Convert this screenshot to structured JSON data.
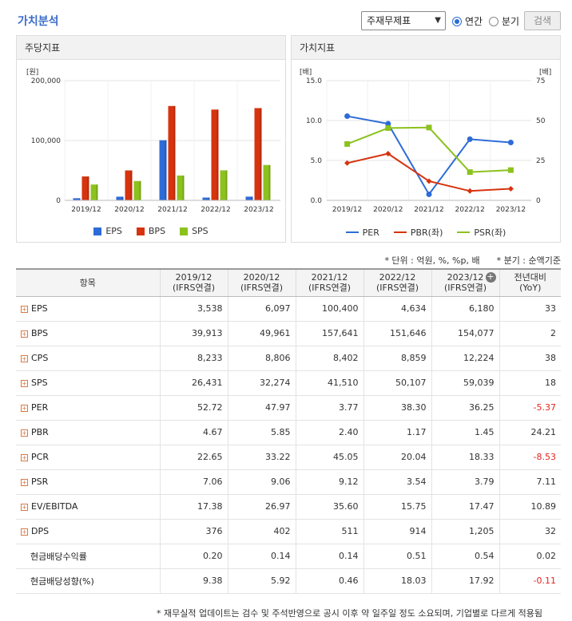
{
  "header": {
    "title": "가치분석",
    "select_value": "주재무제표",
    "radio_annual": "연간",
    "radio_quarter": "분기",
    "search_button": "검색"
  },
  "left_panel": {
    "title": "주당지표",
    "unit": "[원]",
    "chart_data": {
      "type": "bar",
      "categories": [
        "2019/12",
        "2020/12",
        "2021/12",
        "2022/12",
        "2023/12"
      ],
      "series": [
        {
          "name": "EPS",
          "color": "#2e6bd8",
          "values": [
            3538,
            6097,
            100400,
            4634,
            6180
          ]
        },
        {
          "name": "BPS",
          "color": "#d6330f",
          "values": [
            39913,
            49961,
            157641,
            151646,
            154077
          ]
        },
        {
          "name": "SPS",
          "color": "#8cc21e",
          "values": [
            26431,
            32274,
            41510,
            50107,
            59039
          ]
        }
      ],
      "ylim": [
        0,
        200000
      ],
      "yticks": [
        "0",
        "100,000",
        "200,000"
      ],
      "ytick_values": [
        0,
        100000,
        200000
      ]
    }
  },
  "right_panel": {
    "title": "가치지표",
    "unit_left": "[배]",
    "unit_right": "[배]",
    "chart_data": {
      "type": "line",
      "categories": [
        "2019/12",
        "2020/12",
        "2021/12",
        "2022/12",
        "2023/12"
      ],
      "series": [
        {
          "name": "PER",
          "color": "#2e6bd8",
          "axis": "right",
          "values": [
            52.72,
            47.97,
            3.77,
            38.3,
            36.25
          ]
        },
        {
          "name": "PBR(좌)",
          "color": "#d6330f",
          "axis": "left",
          "values": [
            4.67,
            5.85,
            2.4,
            1.17,
            1.45
          ]
        },
        {
          "name": "PSR(좌)",
          "color": "#8cc21e",
          "axis": "left",
          "values": [
            7.06,
            9.06,
            9.12,
            3.54,
            3.79
          ]
        }
      ],
      "ylim_left": [
        0,
        15
      ],
      "ylim_right": [
        0,
        75
      ],
      "yticks_left": [
        "0.0",
        "5.0",
        "10.0",
        "15.0"
      ],
      "yticks_right": [
        "0",
        "25",
        "50",
        "75"
      ]
    }
  },
  "unit_note": "* 단위 : 억원, %, %p, 배      * 분기 : 순액기준",
  "table": {
    "headers": [
      [
        "항목",
        ""
      ],
      [
        "2019/12",
        "(IFRS연결)"
      ],
      [
        "2020/12",
        "(IFRS연결)"
      ],
      [
        "2021/12",
        "(IFRS연결)"
      ],
      [
        "2022/12",
        "(IFRS연결)"
      ],
      [
        "2023/12",
        "(IFRS연결)"
      ],
      [
        "전년대비",
        "(YoY)"
      ]
    ],
    "rows": [
      {
        "name": "EPS",
        "expand": true,
        "cells": [
          "3,538",
          "6,097",
          "100,400",
          "4,634",
          "6,180",
          "33"
        ]
      },
      {
        "name": "BPS",
        "expand": true,
        "cells": [
          "39,913",
          "49,961",
          "157,641",
          "151,646",
          "154,077",
          "2"
        ]
      },
      {
        "name": "CPS",
        "expand": true,
        "cells": [
          "8,233",
          "8,806",
          "8,402",
          "8,859",
          "12,224",
          "38"
        ]
      },
      {
        "name": "SPS",
        "expand": true,
        "cells": [
          "26,431",
          "32,274",
          "41,510",
          "50,107",
          "59,039",
          "18"
        ]
      },
      {
        "name": "PER",
        "expand": true,
        "cells": [
          "52.72",
          "47.97",
          "3.77",
          "38.30",
          "36.25",
          "-5.37"
        ]
      },
      {
        "name": "PBR",
        "expand": true,
        "cells": [
          "4.67",
          "5.85",
          "2.40",
          "1.17",
          "1.45",
          "24.21"
        ]
      },
      {
        "name": "PCR",
        "expand": true,
        "cells": [
          "22.65",
          "33.22",
          "45.05",
          "20.04",
          "18.33",
          "-8.53"
        ]
      },
      {
        "name": "PSR",
        "expand": true,
        "cells": [
          "7.06",
          "9.06",
          "9.12",
          "3.54",
          "3.79",
          "7.11"
        ]
      },
      {
        "name": "EV/EBITDA",
        "expand": true,
        "cells": [
          "17.38",
          "26.97",
          "35.60",
          "15.75",
          "17.47",
          "10.89"
        ]
      },
      {
        "name": "DPS",
        "expand": true,
        "cells": [
          "376",
          "402",
          "511",
          "914",
          "1,205",
          "32"
        ]
      },
      {
        "name": "현금배당수익률",
        "expand": false,
        "cells": [
          "0.20",
          "0.14",
          "0.14",
          "0.51",
          "0.54",
          "0.02"
        ]
      },
      {
        "name": "현금배당성향(%)",
        "expand": false,
        "cells": [
          "9.38",
          "5.92",
          "0.46",
          "18.03",
          "17.92",
          "-0.11"
        ]
      }
    ]
  },
  "footnote": "* 재무실적 업데이트는 검수 및 주석반영으로 공시 이후 약 일주일 정도 소요되며, 기업별로 다르게 적용됨"
}
